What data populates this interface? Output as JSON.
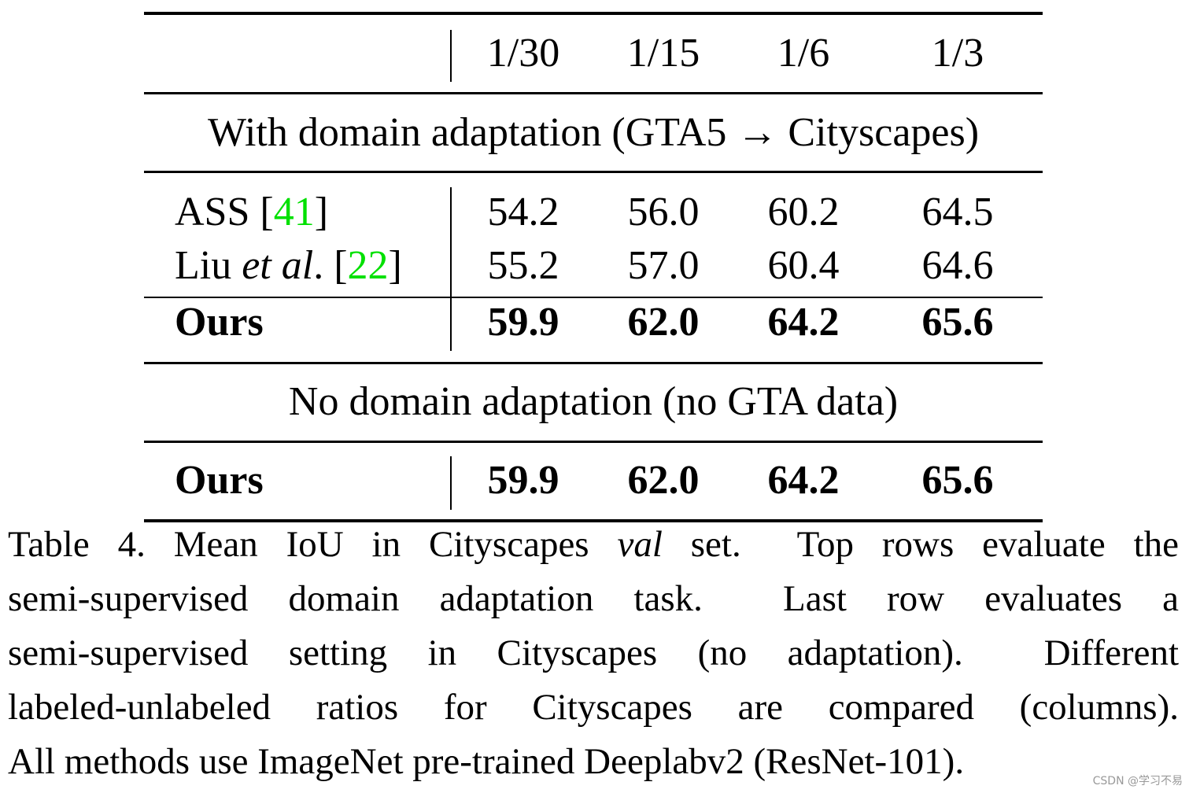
{
  "table": {
    "columns": [
      "1/30",
      "1/15",
      "1/6",
      "1/3"
    ],
    "sections": [
      {
        "title": "With domain adaptation (GTA5 → Cityscapes)",
        "rows": [
          {
            "method": [
              "ASS [",
              "41",
              "]"
            ],
            "values": [
              "54.2",
              "56.0",
              "60.2",
              "64.5"
            ]
          },
          {
            "method": [
              "Liu ",
              "et al",
              ". [",
              "22",
              "]"
            ],
            "values": [
              "55.2",
              "57.0",
              "60.4",
              "64.6"
            ]
          },
          {
            "method": [
              "Ours"
            ],
            "values": [
              "59.9",
              "62.0",
              "64.2",
              "65.6"
            ]
          }
        ]
      },
      {
        "title": "No domain adaptation (no GTA data)",
        "rows": [
          {
            "method": [
              "Ours"
            ],
            "values": [
              "59.9",
              "62.0",
              "64.2",
              "65.6"
            ]
          }
        ]
      }
    ]
  },
  "caption": {
    "lines": [
      [
        "Table 4. Mean IoU in Cityscapes ",
        "val",
        " set.  Top rows evaluate the"
      ],
      [
        "semi-supervised domain adaptation task.  Last row evaluates a"
      ],
      [
        "semi-supervised setting in Cityscapes (no adaptation).  Different"
      ],
      [
        "labeled-unlabeled ratios for Cityscapes are compared (columns)."
      ],
      [
        "All methods use ImageNet pre-trained Deeplabv2 (ResNet-101)."
      ]
    ]
  },
  "watermark": "CSDN @学习不易"
}
